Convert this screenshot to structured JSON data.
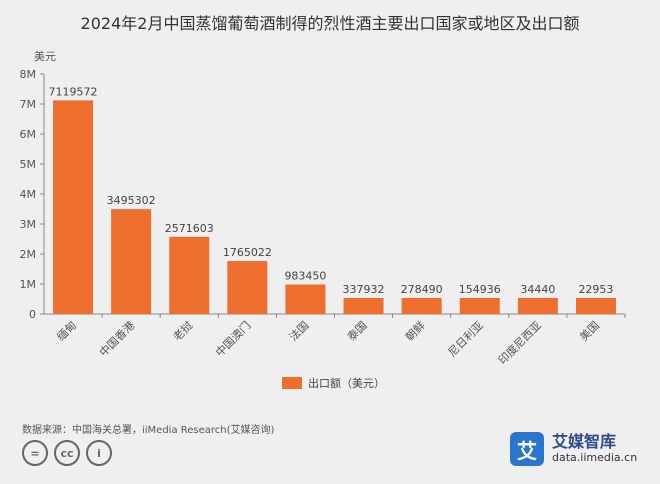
{
  "chart_data": {
    "type": "bar",
    "title": "2024年2月中国蒸馏葡萄酒制得的烈性酒主要出口国家或地区及出口额",
    "unit_label": "美元",
    "categories": [
      "缅甸",
      "中国香港",
      "老挝",
      "中国澳门",
      "法国",
      "泰国",
      "朝鲜",
      "尼日利亚",
      "印度尼西亚",
      "美国"
    ],
    "series": [
      {
        "name": "出口额（美元）",
        "values": [
          7119572,
          3495302,
          2571603,
          1765022,
          983450,
          337932,
          278490,
          154936,
          34440,
          22953
        ],
        "labels": [
          "7119572",
          "3495302",
          "2571603",
          "1765022",
          "983450",
          "337932",
          "278490",
          "154936",
          "34440",
          "22953"
        ]
      }
    ],
    "ylim": [
      0,
      8000000
    ],
    "yticks": [
      "0",
      "1M",
      "2M",
      "3M",
      "4M",
      "5M",
      "6M",
      "7M",
      "8M"
    ],
    "grid": false,
    "legend_position": "bottom-center",
    "bar_color": "#ee6e2d"
  },
  "footer": {
    "source": "数据来源：中国海关总署，iiMedia Research(艾媒咨询)",
    "cc_icons": [
      "=",
      "cc",
      "i"
    ]
  },
  "brand": {
    "logo_char": "艾",
    "name": "艾媒智库",
    "url": "data.iimedia.cn"
  }
}
